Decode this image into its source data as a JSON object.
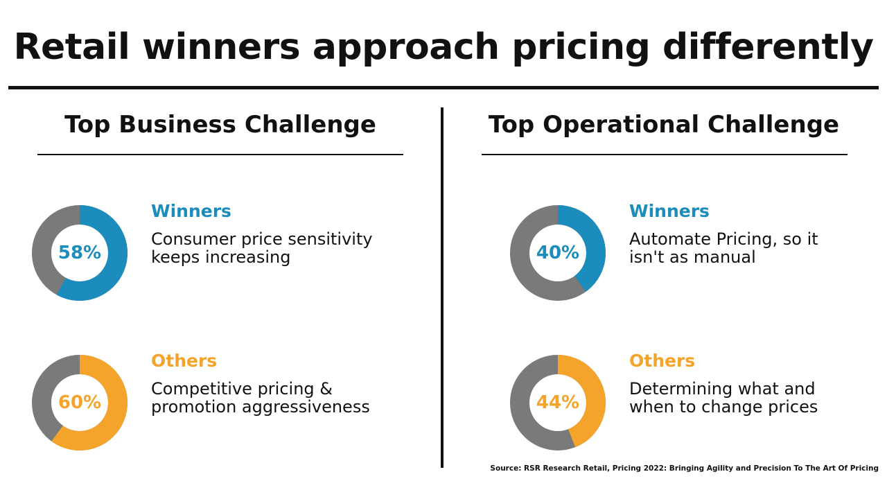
{
  "title": "Retail winners approach pricing differently",
  "colors": {
    "track": "#7a7a7a",
    "winners": "#1b8cbb",
    "others": "#f4a42a"
  },
  "panels": [
    {
      "heading": "Top Business Challenge",
      "items": [
        {
          "group": "Winners",
          "pct_label": "58%",
          "value": 58,
          "desc_line1": "Consumer price sensitivity",
          "desc_line2": "keeps increasing"
        },
        {
          "group": "Others",
          "pct_label": "60%",
          "value": 60,
          "desc_line1": "Competitive pricing &",
          "desc_line2": "promotion aggressiveness"
        }
      ]
    },
    {
      "heading": "Top Operational Challenge",
      "items": [
        {
          "group": "Winners",
          "pct_label": "40%",
          "value": 40,
          "desc_line1": "Automate Pricing, so it",
          "desc_line2": "isn't as manual"
        },
        {
          "group": "Others",
          "pct_label": "44%",
          "value": 44,
          "desc_line1": "Determining what and",
          "desc_line2": "when to change prices"
        }
      ]
    }
  ],
  "source": "Source: RSR Research Retail, Pricing 2022: Bringing Agility and Precision To The Art Of Pricing",
  "chart_data": [
    {
      "type": "pie",
      "title": "Top Business Challenge",
      "categories": [
        "Winners",
        "Others"
      ],
      "values": [
        58,
        60
      ]
    },
    {
      "type": "pie",
      "title": "Top Operational Challenge",
      "categories": [
        "Winners",
        "Others"
      ],
      "values": [
        40,
        44
      ]
    }
  ]
}
